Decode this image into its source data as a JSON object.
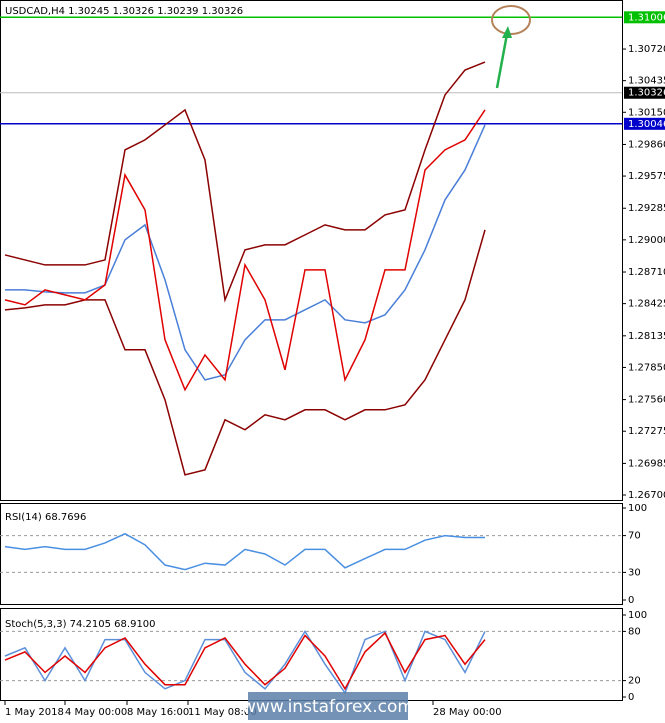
{
  "chart_data": [
    {
      "type": "line",
      "title": "USDCAD,H4 1.30245 1.30326 1.30239 1.30326",
      "x": [
        0,
        1,
        2,
        3,
        4,
        5,
        6,
        7,
        8,
        9,
        10,
        11,
        12,
        13,
        14,
        15,
        16,
        17,
        18,
        19,
        20,
        21,
        22,
        23,
        24
      ],
      "xlim": [
        -0.25,
        30.85
      ],
      "ylim": [
        1.26655,
        1.31144
      ],
      "yticks": [
        {
          "value": 1.3072,
          "label": "1.30720"
        },
        {
          "value": 1.30435,
          "label": "1.30435"
        },
        {
          "value": 1.3015,
          "label": "1.30150"
        },
        {
          "value": 1.2986,
          "label": "1.29860"
        },
        {
          "value": 1.29575,
          "label": "1.29575"
        },
        {
          "value": 1.29285,
          "label": "1.29285"
        },
        {
          "value": 1.29,
          "label": "1.29000"
        },
        {
          "value": 1.2871,
          "label": "1.28710"
        },
        {
          "value": 1.28425,
          "label": "1.28425"
        },
        {
          "value": 1.28135,
          "label": "1.28135"
        },
        {
          "value": 1.2785,
          "label": "1.27850"
        },
        {
          "value": 1.2756,
          "label": "1.27560"
        },
        {
          "value": 1.27275,
          "label": "1.27275"
        },
        {
          "value": 1.26985,
          "label": "1.26985"
        },
        {
          "value": 1.267,
          "label": "1.26700"
        }
      ],
      "levels": [
        {
          "value": 1.31006,
          "color": "#00c000"
        },
        {
          "value": 1.30046,
          "color": "#0000cc"
        },
        {
          "value": 1.30326,
          "color": "#000000"
        }
      ],
      "series": [
        {
          "color": "#8b0000",
          "values": [
            1.28864,
            1.28819,
            1.28774,
            1.28774,
            1.28774,
            1.28819,
            1.29811,
            1.29901,
            1.30036,
            1.30171,
            1.2972,
            1.28459,
            1.2891,
            1.28955,
            1.28955,
            1.29045,
            1.29135,
            1.2909,
            1.2909,
            1.29225,
            1.2927,
            1.29811,
            1.30306,
            1.30531,
            1.30603
          ]
        },
        {
          "color": "#8b0000",
          "values": [
            1.28369,
            1.28387,
            1.28414,
            1.28414,
            1.28459,
            1.28459,
            1.28009,
            1.28009,
            1.27558,
            1.26882,
            1.26927,
            1.27378,
            1.27288,
            1.27423,
            1.27378,
            1.27468,
            1.27468,
            1.27378,
            1.27468,
            1.27468,
            1.27513,
            1.27738,
            1.28099,
            1.28459,
            1.2909
          ]
        },
        {
          "color": "#4a7fd8",
          "values": [
            1.28549,
            1.28549,
            1.28531,
            1.28522,
            1.28522,
            1.28594,
            1.29,
            1.29135,
            1.28639,
            1.28009,
            1.27738,
            1.27783,
            1.28099,
            1.28279,
            1.28279,
            1.28369,
            1.28459,
            1.28279,
            1.28252,
            1.28324,
            1.28549,
            1.2891,
            1.2936,
            1.2963,
            1.30036
          ]
        },
        {
          "color": "#e00000",
          "values": [
            1.28459,
            1.28414,
            1.28549,
            1.28504,
            1.28459,
            1.28594,
            1.29585,
            1.2927,
            1.28099,
            1.27648,
            1.27963,
            1.27738,
            1.28774,
            1.28459,
            1.27828,
            1.28729,
            1.28729,
            1.27738,
            1.28099,
            1.28729,
            1.28729,
            1.2963,
            1.29811,
            1.29901,
            1.30171
          ]
        }
      ]
    },
    {
      "type": "line",
      "title": "RSI(14) 68.7696",
      "x": [
        0,
        1,
        2,
        3,
        4,
        5,
        6,
        7,
        8,
        9,
        10,
        11,
        12,
        13,
        14,
        15,
        16,
        17,
        18,
        19,
        20,
        21,
        22,
        23,
        24
      ],
      "xlim": [
        -0.25,
        30.85
      ],
      "ylim": [
        0,
        100
      ],
      "yticks": [
        100,
        70,
        30,
        0
      ],
      "series": [
        {
          "color": "#4a90e2",
          "values": [
            58,
            55,
            58,
            55,
            55,
            62,
            72,
            60,
            38,
            33,
            40,
            38,
            55,
            50,
            38,
            55,
            55,
            35,
            45,
            55,
            55,
            65,
            70,
            68,
            68
          ]
        }
      ]
    },
    {
      "type": "line",
      "title": "Stoch(5,3,3) 74.2105 68.9100",
      "x": [
        0,
        1,
        2,
        3,
        4,
        5,
        6,
        7,
        8,
        9,
        10,
        11,
        12,
        13,
        14,
        15,
        16,
        17,
        18,
        19,
        20,
        21,
        22,
        23,
        24
      ],
      "xlim": [
        -0.25,
        30.85
      ],
      "ylim": [
        0,
        100
      ],
      "yticks": [
        100,
        80,
        20,
        0
      ],
      "xticks": [
        {
          "value": 0,
          "label": "1 May 2018"
        },
        {
          "value": 3,
          "label": "4 May 00:00"
        },
        {
          "value": 6.1,
          "label": "8 May 16:00"
        },
        {
          "value": 9.15,
          "label": "11 May 08:00"
        },
        {
          "value": 21.4,
          "label": "28 May 00:00"
        }
      ],
      "series": [
        {
          "color": "#5b8fd9",
          "values": [
            50,
            60,
            20,
            60,
            20,
            70,
            70,
            30,
            10,
            20,
            70,
            70,
            30,
            10,
            40,
            80,
            40,
            5,
            70,
            80,
            20,
            80,
            70,
            30,
            80
          ]
        },
        {
          "color": "#e00000",
          "values": [
            45,
            55,
            30,
            50,
            30,
            60,
            72,
            40,
            15,
            15,
            60,
            72,
            40,
            15,
            35,
            75,
            50,
            10,
            55,
            78,
            30,
            70,
            75,
            40,
            70
          ]
        }
      ]
    }
  ],
  "watermark": "www.instaforex.com"
}
